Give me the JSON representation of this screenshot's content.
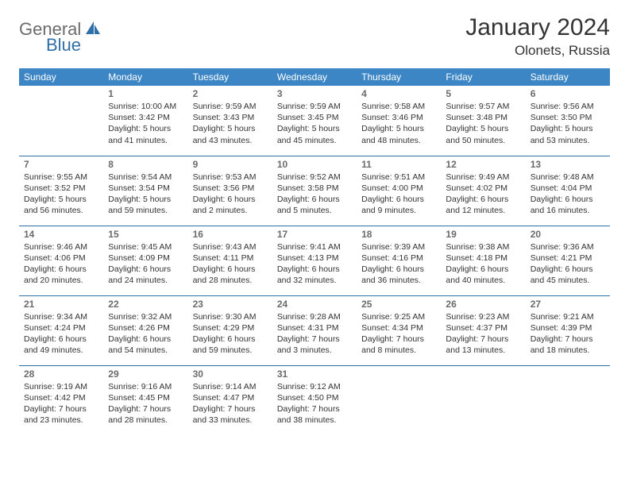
{
  "logo": {
    "part1": "General",
    "part2": "Blue"
  },
  "title": "January 2024",
  "location": "Olonets, Russia",
  "colors": {
    "header_bg": "#3d86c6",
    "border": "#2f6fa8",
    "logo_gray": "#6b6b6b",
    "logo_blue": "#2f6fa8",
    "text": "#333333"
  },
  "weekdays": [
    "Sunday",
    "Monday",
    "Tuesday",
    "Wednesday",
    "Thursday",
    "Friday",
    "Saturday"
  ],
  "weeks": [
    [
      null,
      {
        "n": "1",
        "sr": "Sunrise: 10:00 AM",
        "ss": "Sunset: 3:42 PM",
        "dl": "Daylight: 5 hours and 41 minutes."
      },
      {
        "n": "2",
        "sr": "Sunrise: 9:59 AM",
        "ss": "Sunset: 3:43 PM",
        "dl": "Daylight: 5 hours and 43 minutes."
      },
      {
        "n": "3",
        "sr": "Sunrise: 9:59 AM",
        "ss": "Sunset: 3:45 PM",
        "dl": "Daylight: 5 hours and 45 minutes."
      },
      {
        "n": "4",
        "sr": "Sunrise: 9:58 AM",
        "ss": "Sunset: 3:46 PM",
        "dl": "Daylight: 5 hours and 48 minutes."
      },
      {
        "n": "5",
        "sr": "Sunrise: 9:57 AM",
        "ss": "Sunset: 3:48 PM",
        "dl": "Daylight: 5 hours and 50 minutes."
      },
      {
        "n": "6",
        "sr": "Sunrise: 9:56 AM",
        "ss": "Sunset: 3:50 PM",
        "dl": "Daylight: 5 hours and 53 minutes."
      }
    ],
    [
      {
        "n": "7",
        "sr": "Sunrise: 9:55 AM",
        "ss": "Sunset: 3:52 PM",
        "dl": "Daylight: 5 hours and 56 minutes."
      },
      {
        "n": "8",
        "sr": "Sunrise: 9:54 AM",
        "ss": "Sunset: 3:54 PM",
        "dl": "Daylight: 5 hours and 59 minutes."
      },
      {
        "n": "9",
        "sr": "Sunrise: 9:53 AM",
        "ss": "Sunset: 3:56 PM",
        "dl": "Daylight: 6 hours and 2 minutes."
      },
      {
        "n": "10",
        "sr": "Sunrise: 9:52 AM",
        "ss": "Sunset: 3:58 PM",
        "dl": "Daylight: 6 hours and 5 minutes."
      },
      {
        "n": "11",
        "sr": "Sunrise: 9:51 AM",
        "ss": "Sunset: 4:00 PM",
        "dl": "Daylight: 6 hours and 9 minutes."
      },
      {
        "n": "12",
        "sr": "Sunrise: 9:49 AM",
        "ss": "Sunset: 4:02 PM",
        "dl": "Daylight: 6 hours and 12 minutes."
      },
      {
        "n": "13",
        "sr": "Sunrise: 9:48 AM",
        "ss": "Sunset: 4:04 PM",
        "dl": "Daylight: 6 hours and 16 minutes."
      }
    ],
    [
      {
        "n": "14",
        "sr": "Sunrise: 9:46 AM",
        "ss": "Sunset: 4:06 PM",
        "dl": "Daylight: 6 hours and 20 minutes."
      },
      {
        "n": "15",
        "sr": "Sunrise: 9:45 AM",
        "ss": "Sunset: 4:09 PM",
        "dl": "Daylight: 6 hours and 24 minutes."
      },
      {
        "n": "16",
        "sr": "Sunrise: 9:43 AM",
        "ss": "Sunset: 4:11 PM",
        "dl": "Daylight: 6 hours and 28 minutes."
      },
      {
        "n": "17",
        "sr": "Sunrise: 9:41 AM",
        "ss": "Sunset: 4:13 PM",
        "dl": "Daylight: 6 hours and 32 minutes."
      },
      {
        "n": "18",
        "sr": "Sunrise: 9:39 AM",
        "ss": "Sunset: 4:16 PM",
        "dl": "Daylight: 6 hours and 36 minutes."
      },
      {
        "n": "19",
        "sr": "Sunrise: 9:38 AM",
        "ss": "Sunset: 4:18 PM",
        "dl": "Daylight: 6 hours and 40 minutes."
      },
      {
        "n": "20",
        "sr": "Sunrise: 9:36 AM",
        "ss": "Sunset: 4:21 PM",
        "dl": "Daylight: 6 hours and 45 minutes."
      }
    ],
    [
      {
        "n": "21",
        "sr": "Sunrise: 9:34 AM",
        "ss": "Sunset: 4:24 PM",
        "dl": "Daylight: 6 hours and 49 minutes."
      },
      {
        "n": "22",
        "sr": "Sunrise: 9:32 AM",
        "ss": "Sunset: 4:26 PM",
        "dl": "Daylight: 6 hours and 54 minutes."
      },
      {
        "n": "23",
        "sr": "Sunrise: 9:30 AM",
        "ss": "Sunset: 4:29 PM",
        "dl": "Daylight: 6 hours and 59 minutes."
      },
      {
        "n": "24",
        "sr": "Sunrise: 9:28 AM",
        "ss": "Sunset: 4:31 PM",
        "dl": "Daylight: 7 hours and 3 minutes."
      },
      {
        "n": "25",
        "sr": "Sunrise: 9:25 AM",
        "ss": "Sunset: 4:34 PM",
        "dl": "Daylight: 7 hours and 8 minutes."
      },
      {
        "n": "26",
        "sr": "Sunrise: 9:23 AM",
        "ss": "Sunset: 4:37 PM",
        "dl": "Daylight: 7 hours and 13 minutes."
      },
      {
        "n": "27",
        "sr": "Sunrise: 9:21 AM",
        "ss": "Sunset: 4:39 PM",
        "dl": "Daylight: 7 hours and 18 minutes."
      }
    ],
    [
      {
        "n": "28",
        "sr": "Sunrise: 9:19 AM",
        "ss": "Sunset: 4:42 PM",
        "dl": "Daylight: 7 hours and 23 minutes."
      },
      {
        "n": "29",
        "sr": "Sunrise: 9:16 AM",
        "ss": "Sunset: 4:45 PM",
        "dl": "Daylight: 7 hours and 28 minutes."
      },
      {
        "n": "30",
        "sr": "Sunrise: 9:14 AM",
        "ss": "Sunset: 4:47 PM",
        "dl": "Daylight: 7 hours and 33 minutes."
      },
      {
        "n": "31",
        "sr": "Sunrise: 9:12 AM",
        "ss": "Sunset: 4:50 PM",
        "dl": "Daylight: 7 hours and 38 minutes."
      },
      null,
      null,
      null
    ]
  ]
}
